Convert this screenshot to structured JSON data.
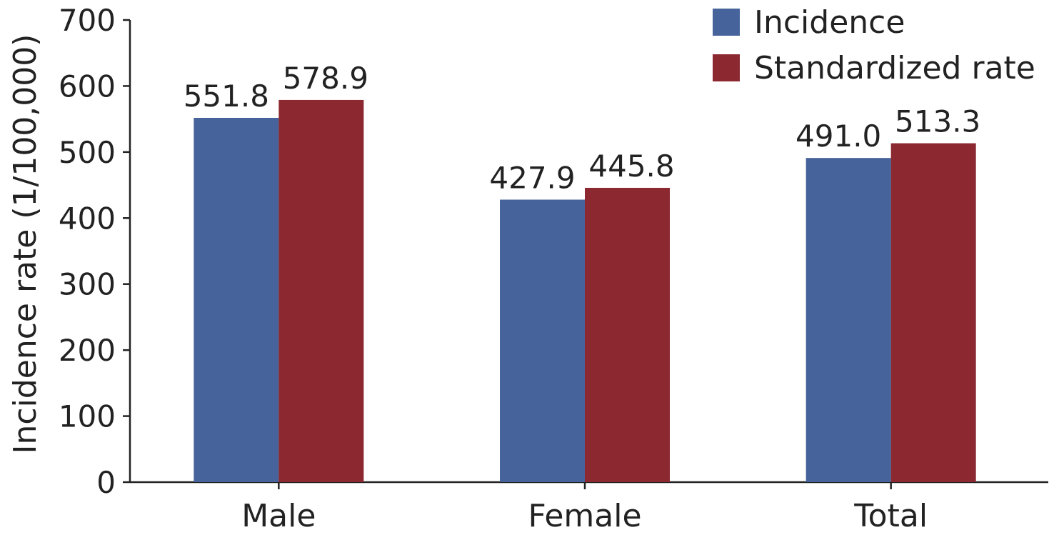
{
  "chart_data": {
    "type": "bar",
    "categories": [
      "Male",
      "Female",
      "Total"
    ],
    "series": [
      {
        "name": "Incidence",
        "values": [
          551.8,
          427.9,
          491.0
        ],
        "labels": [
          "551.8",
          "427.9",
          "491.0"
        ],
        "color": "#46639b"
      },
      {
        "name": "Standardized rate",
        "values": [
          578.9,
          445.8,
          513.3
        ],
        "labels": [
          "578.9",
          "445.8",
          "513.3"
        ],
        "color": "#8b2830"
      }
    ],
    "title": "",
    "xlabel": "",
    "ylabel": "Incidence rate (1/100,000)",
    "ylim": [
      0,
      700
    ],
    "yticks": [
      0,
      100,
      200,
      300,
      400,
      500,
      600,
      700
    ],
    "ytick_labels": [
      "0",
      "100",
      "200",
      "300",
      "400",
      "500",
      "600",
      "700"
    ],
    "grid": false,
    "legend_position": "top-right"
  }
}
